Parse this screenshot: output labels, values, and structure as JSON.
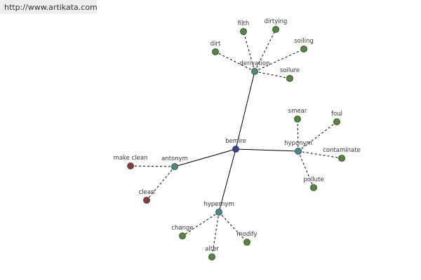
{
  "header": {
    "url": "http://www.artikata.com"
  },
  "nodes": [
    {
      "label": "bemire"
    },
    {
      "label": "derivation"
    },
    {
      "label": "hyponym"
    },
    {
      "label": "antonym"
    },
    {
      "label": "hypernym"
    },
    {
      "label": "dirt"
    },
    {
      "label": "filth"
    },
    {
      "label": "dirtying"
    },
    {
      "label": "soiling"
    },
    {
      "label": "soilure"
    },
    {
      "label": "smear"
    },
    {
      "label": "foul"
    },
    {
      "label": "contaminate"
    },
    {
      "label": "pollute"
    },
    {
      "label": "make clean"
    },
    {
      "label": "clean"
    },
    {
      "label": "change"
    },
    {
      "label": "alter"
    },
    {
      "label": "modify"
    }
  ]
}
